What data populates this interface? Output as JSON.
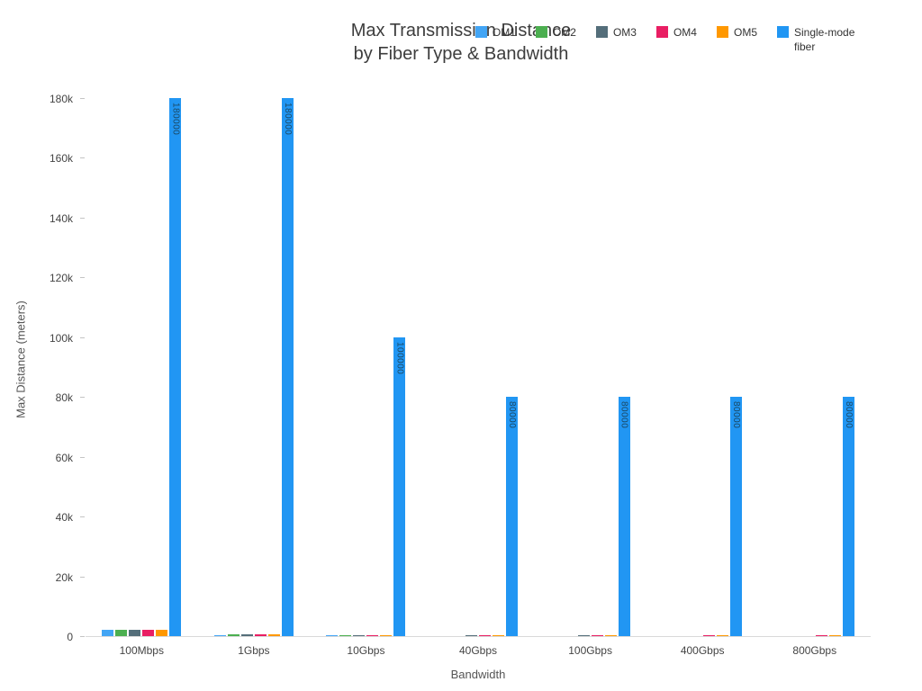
{
  "title": {
    "line1": "Max Transmission Distance",
    "line2": "by Fiber Type & Bandwidth"
  },
  "axes": {
    "x_title": "Bandwidth",
    "y_title": "Max Distance (meters)"
  },
  "chart_data": {
    "type": "bar",
    "title": "Max Transmission Distance by Fiber Type & Bandwidth",
    "xlabel": "Bandwidth",
    "ylabel": "Max Distance (meters)",
    "grid": false,
    "legend_position": "top-right",
    "ylim": [
      0,
      190000
    ],
    "y_axis_max": 180000,
    "y_ticks": [
      {
        "value": 0,
        "label": "0"
      },
      {
        "value": 20000,
        "label": "20k"
      },
      {
        "value": 40000,
        "label": "40k"
      },
      {
        "value": 60000,
        "label": "60k"
      },
      {
        "value": 80000,
        "label": "80k"
      },
      {
        "value": 100000,
        "label": "100k"
      },
      {
        "value": 120000,
        "label": "120k"
      },
      {
        "value": 140000,
        "label": "140k"
      },
      {
        "value": 160000,
        "label": "160k"
      },
      {
        "value": 180000,
        "label": "180k"
      }
    ],
    "categories": [
      "100Mbps",
      "1Gbps",
      "10Gbps",
      "40Gbps",
      "100Gbps",
      "400Gbps",
      "800Gbps"
    ],
    "series": [
      {
        "name": "OM1",
        "color": "#42A5F5",
        "values": [
          2000,
          275,
          33,
          0,
          0,
          0,
          0
        ]
      },
      {
        "name": "OM2",
        "color": "#4CAF50",
        "values": [
          2000,
          550,
          82,
          0,
          0,
          0,
          0
        ]
      },
      {
        "name": "OM3",
        "color": "#546E7A",
        "values": [
          2000,
          550,
          300,
          100,
          100,
          0,
          0
        ]
      },
      {
        "name": "OM4",
        "color": "#E91E63",
        "values": [
          2000,
          550,
          400,
          150,
          150,
          100,
          100
        ]
      },
      {
        "name": "OM5",
        "color": "#FF9800",
        "values": [
          2000,
          550,
          400,
          150,
          150,
          100,
          100
        ]
      },
      {
        "name": "Single-mode fiber",
        "color": "#2196F3",
        "values": [
          180000,
          180000,
          100000,
          80000,
          80000,
          80000,
          80000
        ],
        "show_labels": true,
        "bar_labels": [
          "180000",
          "180000",
          "100000",
          "80000",
          "80000",
          "80000",
          "80000"
        ]
      }
    ],
    "bar_label_color": "#1b4965"
  }
}
